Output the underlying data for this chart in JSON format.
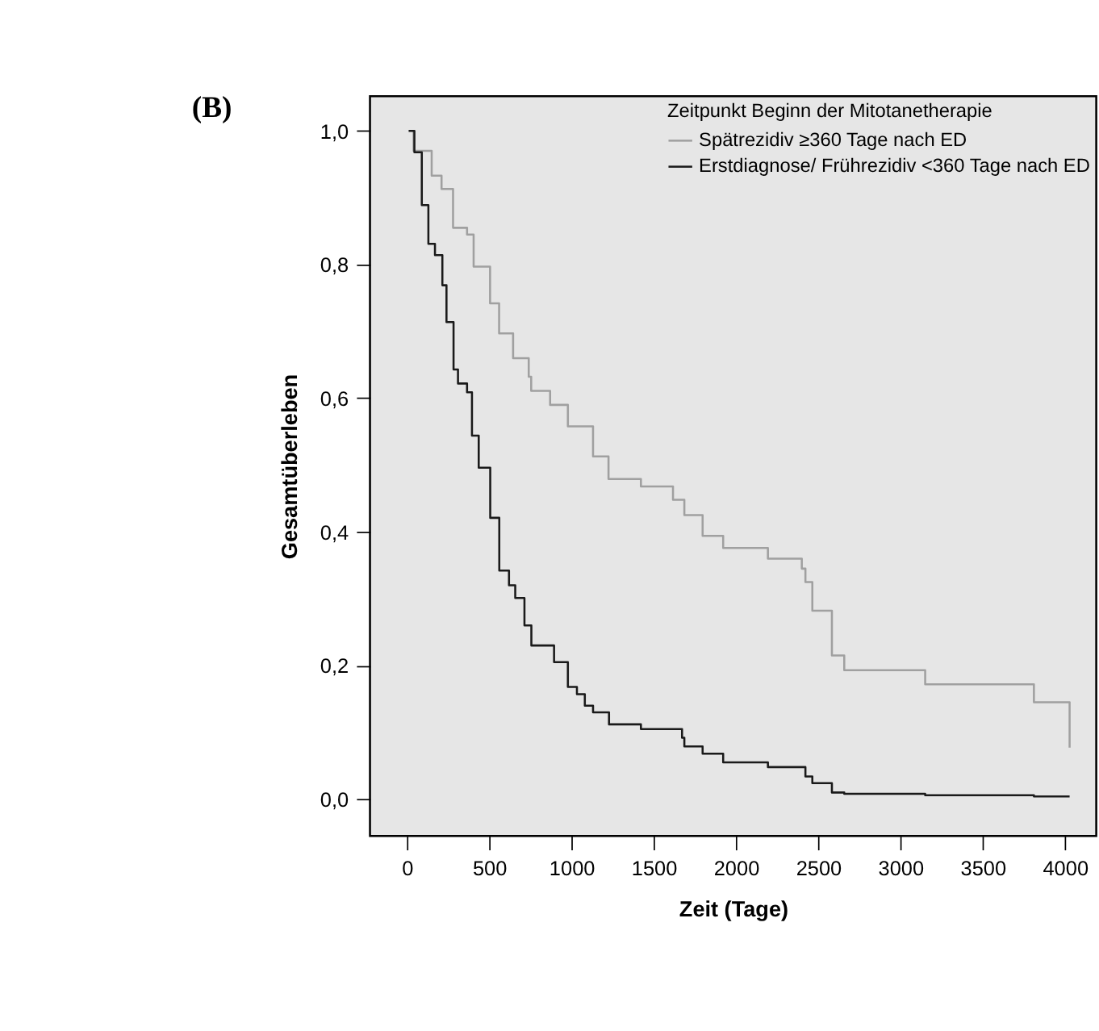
{
  "chart_data": {
    "type": "step",
    "annotations": [
      "(B)"
    ],
    "xlabel": "Zeit (Tage)",
    "ylabel": "Gesamtüberleben",
    "legend_title": "Zeitpunkt Beginn der Mitotanetherapie",
    "legend": "top right",
    "grid": false,
    "xlim": [
      -225,
      4190
    ],
    "ylim": [
      -0.055,
      1.052
    ],
    "xticks": [
      0,
      500,
      1000,
      1500,
      2000,
      2500,
      3000,
      3500,
      4000
    ],
    "yticks": [
      {
        "value": 0,
        "label": "0,0"
      },
      {
        "value": 0.2,
        "label": "0,2"
      },
      {
        "value": 0.4,
        "label": "0,4"
      },
      {
        "value": 0.6,
        "label": "0,6"
      },
      {
        "value": 0.8,
        "label": "0,8"
      },
      {
        "value": 1.0,
        "label": "1,0"
      }
    ],
    "series": [
      {
        "name": "Spätrezidiv ≥360 Tage nach ED",
        "color": "#a0a0a0",
        "x": [
          30,
          40,
          150,
          210,
          280,
          365,
          405,
          505,
          560,
          645,
          740,
          755,
          870,
          978,
          1131,
          1225,
          1422,
          1617,
          1686,
          1797,
          1922,
          2194,
          2400,
          2422,
          2464,
          2583,
          2658,
          3150,
          3811,
          4028
        ],
        "values": [
          1.0,
          0.97,
          0.933,
          0.913,
          0.855,
          0.845,
          0.797,
          0.742,
          0.697,
          0.66,
          0.632,
          0.611,
          0.59,
          0.558,
          0.513,
          0.479,
          0.468,
          0.448,
          0.425,
          0.394,
          0.376,
          0.36,
          0.345,
          0.325,
          0.282,
          0.215,
          0.193,
          0.172,
          0.145,
          0.077
        ]
      },
      {
        "name": "Erstdiagnose/ Frührezidiv <360 Tage nach ED",
        "color": "#1a1a1a",
        "x": [
          10,
          45,
          90,
          130,
          170,
          215,
          240,
          283,
          310,
          365,
          395,
          436,
          506,
          561,
          620,
          658,
          714,
          756,
          894,
          978,
          1033,
          1081,
          1131,
          1228,
          1422,
          1672,
          1686,
          1797,
          1922,
          2194,
          2422,
          2464,
          2583,
          2658,
          3150,
          3811,
          4028
        ],
        "values": [
          1.0,
          0.968,
          0.889,
          0.831,
          0.814,
          0.769,
          0.714,
          0.643,
          0.622,
          0.609,
          0.544,
          0.496,
          0.421,
          0.342,
          0.32,
          0.301,
          0.26,
          0.23,
          0.205,
          0.168,
          0.157,
          0.14,
          0.13,
          0.112,
          0.105,
          0.092,
          0.079,
          0.068,
          0.055,
          0.048,
          0.034,
          0.024,
          0.01,
          0.008,
          0.006,
          0.004,
          0.004
        ]
      }
    ]
  }
}
